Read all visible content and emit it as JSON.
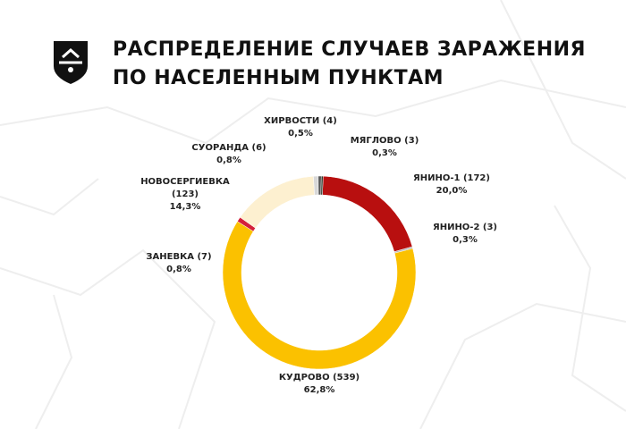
{
  "chart_data": {
    "type": "donut",
    "title": "РАСПРЕДЕЛЕНИЕ СЛУЧАЕВ ЗАРАЖЕНИЯ ПО НАСЕЛЕННЫМ ПУНКТАМ",
    "categories": [
      "ЯНИНО-1 (172)",
      "ЯНИНО-2 (3)",
      "КУДРОВО (539)",
      "ЗАНЕВКА (7)",
      "НОВОСЕРГИЕВКА (123)",
      "СУОРАНДА (6)",
      "ХИРВОСТИ (4)",
      "МЯГЛОВО (3)"
    ],
    "values": [
      20.0,
      0.3,
      62.8,
      0.8,
      14.3,
      0.8,
      0.5,
      0.3
    ],
    "value_labels": [
      "20,0%",
      "0,3%",
      "62,8%",
      "0,8%",
      "14,3%",
      "0,8%",
      "0,5%",
      "0,3%"
    ],
    "colors": [
      "#b80f0f",
      "#b8b8b8",
      "#fbc100",
      "#d4203a",
      "#fdf0d0",
      "#d8d8d8",
      "#555555",
      "#2c3a2c"
    ]
  }
}
